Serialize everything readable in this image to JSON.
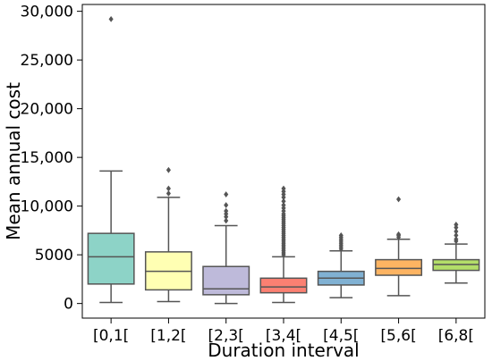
{
  "chart_data": {
    "type": "box",
    "xlabel": "Duration interval",
    "ylabel": "Mean annual cost",
    "ylim": [
      -1500,
      30700
    ],
    "y_ticks": [
      {
        "value": 0,
        "label": "0"
      },
      {
        "value": 5000,
        "label": "5000"
      },
      {
        "value": 10000,
        "label": "10,000"
      },
      {
        "value": 15000,
        "label": "15,000"
      },
      {
        "value": 20000,
        "label": "20,000"
      },
      {
        "value": 25000,
        "label": "25,000"
      },
      {
        "value": 30000,
        "label": "30,000"
      }
    ],
    "grid": false,
    "categories": [
      "[0,1[",
      "[1,2[",
      "[2,3[",
      "[3,4[",
      "[4,5[",
      "[5,6[",
      "[6,8["
    ],
    "boxes": [
      {
        "category": "[0,1[",
        "whisker_low": 100,
        "q1": 2000,
        "median": 4800,
        "q3": 7200,
        "whisker_high": 13600,
        "outliers": [
          29200
        ],
        "color": "#8dd3c7"
      },
      {
        "category": "[1,2[",
        "whisker_low": 200,
        "q1": 1400,
        "median": 3300,
        "q3": 5300,
        "whisker_high": 10900,
        "outliers": [
          11300,
          11800,
          13700
        ],
        "color": "#ffffb3"
      },
      {
        "category": "[2,3[",
        "whisker_low": 0,
        "q1": 900,
        "median": 1500,
        "q3": 3800,
        "whisker_high": 8000,
        "outliers": [
          8500,
          8900,
          9200,
          9500,
          10100,
          11200
        ],
        "color": "#bebada"
      },
      {
        "category": "[3,4[",
        "whisker_low": 100,
        "q1": 1100,
        "median": 1700,
        "q3": 2600,
        "whisker_high": 4800,
        "outliers": [
          5000,
          5200,
          5400,
          5600,
          5800,
          6000,
          6200,
          6400,
          6600,
          6800,
          7000,
          7200,
          7400,
          7600,
          7800,
          8000,
          8200,
          8400,
          8600,
          8800,
          9000,
          9200,
          9500,
          9800,
          10100,
          10500,
          10900,
          11200,
          11500,
          11800
        ],
        "color": "#fb8072"
      },
      {
        "category": "[4,5[",
        "whisker_low": 600,
        "q1": 1900,
        "median": 2600,
        "q3": 3300,
        "whisker_high": 5400,
        "outliers": [
          5600,
          5800,
          6000,
          6200,
          6400,
          6600,
          6800,
          7000
        ],
        "color": "#80b1d3"
      },
      {
        "category": "[5,6[",
        "whisker_low": 800,
        "q1": 2900,
        "median": 3600,
        "q3": 4500,
        "whisker_high": 6600,
        "outliers": [
          6800,
          7000,
          7100,
          10700
        ],
        "color": "#fdb462"
      },
      {
        "category": "[6,8[",
        "whisker_low": 2100,
        "q1": 3400,
        "median": 4000,
        "q3": 4500,
        "whisker_high": 6100,
        "outliers": [
          6400,
          6600,
          7000,
          7400,
          7800,
          8100
        ],
        "color": "#b3de69"
      }
    ]
  }
}
